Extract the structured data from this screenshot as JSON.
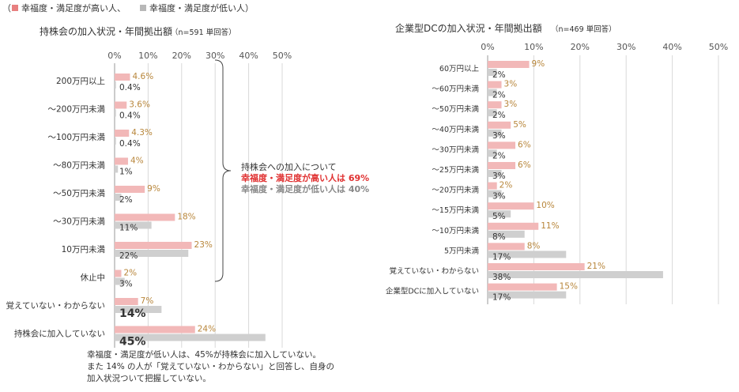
{
  "legend": {
    "open": "（",
    "high_label": "幸福度・満足度が高い人、",
    "low_label": "幸福度・満足度が低い人）",
    "high_color": "#f2b8b8",
    "low_color": "#c8c8c8"
  },
  "annotation": {
    "line1": "持株会への加入について",
    "line2": "幸福度・満足度が高い人は  69%",
    "line3": "幸福度・満足度が低い人は  40%",
    "line2_color": "#e03030"
  },
  "footnote": {
    "line1": "幸福度・満足度が低い人は、45%が持株会に加入していない。",
    "line2": "また 14% の人が「覚えていない・わからない」と回答し、自身の",
    "line3": "加入状況ついて把握していない。"
  },
  "chart_data": [
    {
      "type": "bar",
      "orientation": "horizontal",
      "title": "持株会の加入状況・年間拠出額",
      "subtitle": "（n=591 単回答）",
      "ticks": [
        "0%",
        "10%",
        "20%",
        "30%",
        "40%",
        "50%"
      ],
      "xlim": [
        0,
        50
      ],
      "grid": true,
      "categories": [
        "200万円以上",
        "～200万円未満",
        "～100万円未満",
        "～80万円未満",
        "～50万円未満",
        "～30万円未満",
        "10万円未満",
        "休止中",
        "覚えていない・わからない",
        "持株会に加入していない"
      ],
      "series": [
        {
          "name": "幸福度・満足度が高い人",
          "values": [
            4.6,
            3.6,
            4.3,
            4,
            9,
            18,
            23,
            2,
            7,
            24
          ],
          "labels": [
            "4.6%",
            "3.6%",
            "4.3%",
            "4%",
            "9%",
            "18%",
            "23%",
            "2%",
            "7%",
            "24%"
          ]
        },
        {
          "name": "幸福度・満足度が低い人",
          "values": [
            0.4,
            0.4,
            0.4,
            1,
            2,
            11,
            22,
            3,
            14,
            45
          ],
          "labels": [
            "0.4%",
            "0.4%",
            "0.4%",
            "1%",
            "2%",
            "11%",
            "22%",
            "3%",
            "14%",
            "45%"
          ]
        }
      ]
    },
    {
      "type": "bar",
      "orientation": "horizontal",
      "title": "企業型DCの加入状況・年間拠出額",
      "subtitle": "（n=469 単回答）",
      "ticks": [
        "0%",
        "10%",
        "20%",
        "30%",
        "40%",
        "50%"
      ],
      "xlim": [
        0,
        50
      ],
      "grid": true,
      "categories": [
        "60万円以上",
        "～60万円未満",
        "～50万円未満",
        "～40万円未満",
        "～30万円未満",
        "～25万円未満",
        "～20万円未満",
        "～15万円未満",
        "～10万円未満",
        "5万円未満",
        "覚えていない・わからない",
        "企業型DCに加入していない"
      ],
      "series": [
        {
          "name": "幸福度・満足度が高い人",
          "values": [
            9,
            3,
            3,
            5,
            6,
            6,
            2,
            10,
            11,
            8,
            21,
            15
          ],
          "labels": [
            "9%",
            "3%",
            "3%",
            "5%",
            "6%",
            "6%",
            "2%",
            "10%",
            "11%",
            "8%",
            "21%",
            "15%"
          ]
        },
        {
          "name": "幸福度・満足度が低い人",
          "values": [
            2,
            2,
            2,
            3,
            2,
            3,
            3,
            5,
            8,
            17,
            38,
            17
          ],
          "labels": [
            "2%",
            "2%",
            "2%",
            "3%",
            "2%",
            "3%",
            "3%",
            "5%",
            "8%",
            "17%",
            "38%",
            "17%"
          ]
        }
      ]
    }
  ]
}
